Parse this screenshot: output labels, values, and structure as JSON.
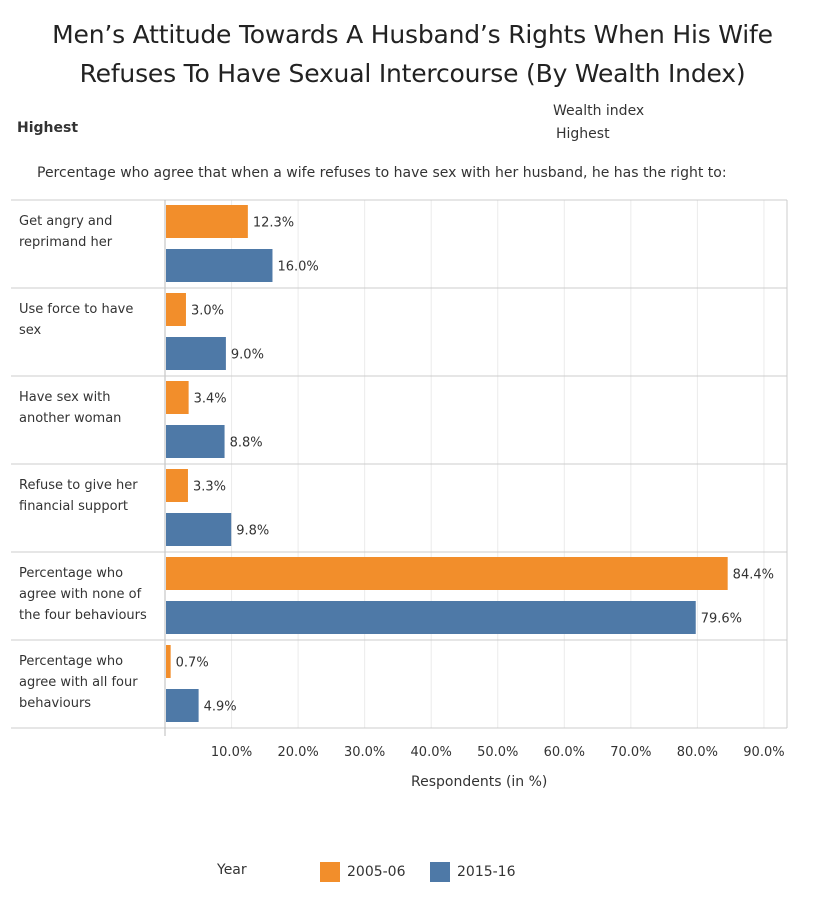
{
  "header": {
    "title_line1": "Men’s Attitude Towards A Husband’s Rights When His Wife",
    "title_line2": "Refuses To Have Sexual Intercourse (By Wealth Index)",
    "filter_left": "Highest",
    "filter_label": "Wealth index",
    "filter_value": "Highest",
    "subtitle": "Percentage who agree that when a wife refuses to have sex with her husband, he has the right to:"
  },
  "legend": {
    "title": "Year",
    "items": [
      {
        "label": "2005-06",
        "color": "#f28e2b"
      },
      {
        "label": "2015-16",
        "color": "#4e79a7"
      }
    ]
  },
  "chart_data": {
    "type": "bar",
    "orientation": "horizontal",
    "categories": [
      [
        "Get angry and",
        "reprimand her"
      ],
      [
        "Use force to have",
        "sex"
      ],
      [
        "Have sex with",
        "another woman"
      ],
      [
        "Refuse to give her",
        "financial support"
      ],
      [
        "Percentage who",
        "agree with none of",
        "the four behaviours"
      ],
      [
        "Percentage who",
        "agree with all four",
        "behaviours"
      ]
    ],
    "series": [
      {
        "name": "2005-06",
        "color": "#f28e2b",
        "values": [
          12.3,
          3.0,
          3.4,
          3.3,
          84.4,
          0.7
        ]
      },
      {
        "name": "2015-16",
        "color": "#4e79a7",
        "values": [
          16.0,
          9.0,
          8.8,
          9.8,
          79.6,
          4.9
        ]
      }
    ],
    "value_labels": [
      [
        "12.3%",
        "3.0%",
        "3.4%",
        "3.3%",
        "84.4%",
        "0.7%"
      ],
      [
        "16.0%",
        "9.0%",
        "8.8%",
        "9.8%",
        "79.6%",
        "4.9%"
      ]
    ],
    "xlabel": "Respondents (in %)",
    "xlim": [
      0,
      95
    ],
    "xticks": [
      10,
      20,
      30,
      40,
      50,
      60,
      70,
      80,
      90
    ],
    "xtick_labels": [
      "10.0%",
      "20.0%",
      "30.0%",
      "40.0%",
      "50.0%",
      "60.0%",
      "70.0%",
      "80.0%",
      "90.0%"
    ],
    "grid": true,
    "legend_position": "bottom"
  }
}
